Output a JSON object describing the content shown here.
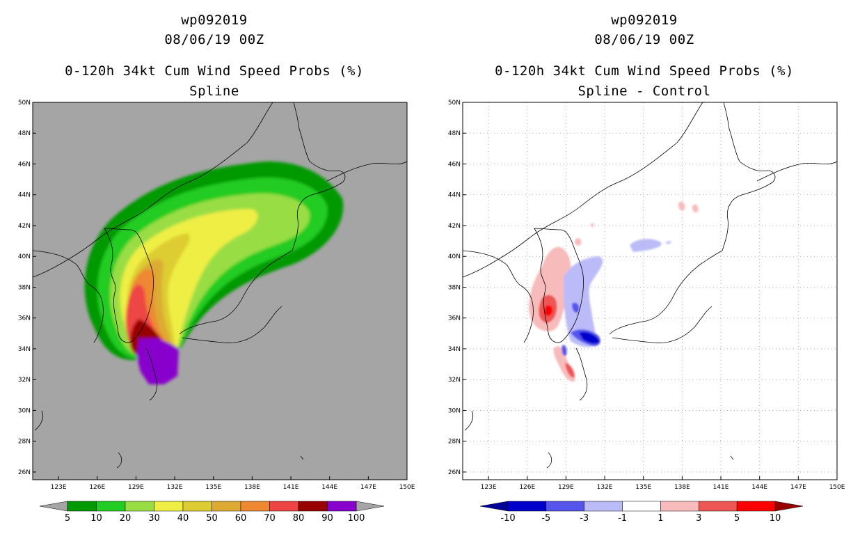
{
  "chart_data": [
    {
      "type": "contour-map",
      "panel": "left",
      "title_lines": [
        "wp092019",
        "08/06/19 00Z",
        "0-120h 34kt Cum Wind Speed Probs (%)",
        "Spline"
      ],
      "xlabels": [
        "123E",
        "126E",
        "129E",
        "132E",
        "135E",
        "138E",
        "141E",
        "144E",
        "147E",
        "150E"
      ],
      "ylabels": [
        "26N",
        "28N",
        "30N",
        "32N",
        "34N",
        "36N",
        "38N",
        "40N",
        "42N",
        "44N",
        "46N",
        "48N",
        "50N"
      ],
      "lon_range": [
        121,
        150
      ],
      "lat_range": [
        25.5,
        50
      ],
      "background": "#a5a5a5",
      "colorbar": {
        "labels": [
          "5",
          "10",
          "20",
          "30",
          "40",
          "50",
          "60",
          "70",
          "80",
          "90",
          "100"
        ],
        "colors": [
          "#009900",
          "#22cc22",
          "#99dd44",
          "#eeee44",
          "#ddcc33",
          "#ddaa33",
          "#ee8833",
          "#ee4444",
          "#990000",
          "#8800cc"
        ],
        "end_colors": [
          "#a5a5a5",
          "#a5a5a5"
        ]
      }
    },
    {
      "type": "contour-map",
      "panel": "right",
      "title_lines": [
        "wp092019",
        "08/06/19 00Z",
        "0-120h 34kt Cum Wind Speed Probs (%)",
        "Spline - Control"
      ],
      "xlabels": [
        "123E",
        "126E",
        "129E",
        "132E",
        "135E",
        "138E",
        "141E",
        "144E",
        "147E",
        "150E"
      ],
      "ylabels": [
        "26N",
        "28N",
        "30N",
        "32N",
        "34N",
        "36N",
        "38N",
        "40N",
        "42N",
        "44N",
        "46N",
        "48N",
        "50N"
      ],
      "lon_range": [
        121,
        150
      ],
      "lat_range": [
        25.5,
        50
      ],
      "background": "#ffffff",
      "grid": "dotted",
      "colorbar": {
        "labels": [
          "-10",
          "-5",
          "-3",
          "-1",
          "1",
          "3",
          "5",
          "10"
        ],
        "colors": [
          "#0000cc",
          "#5555ee",
          "#bbbbf8",
          "#ffffff",
          "#f8bbbb",
          "#ee5555",
          "#ff0000"
        ],
        "end_colors": [
          "#000099",
          "#990000"
        ]
      }
    }
  ]
}
